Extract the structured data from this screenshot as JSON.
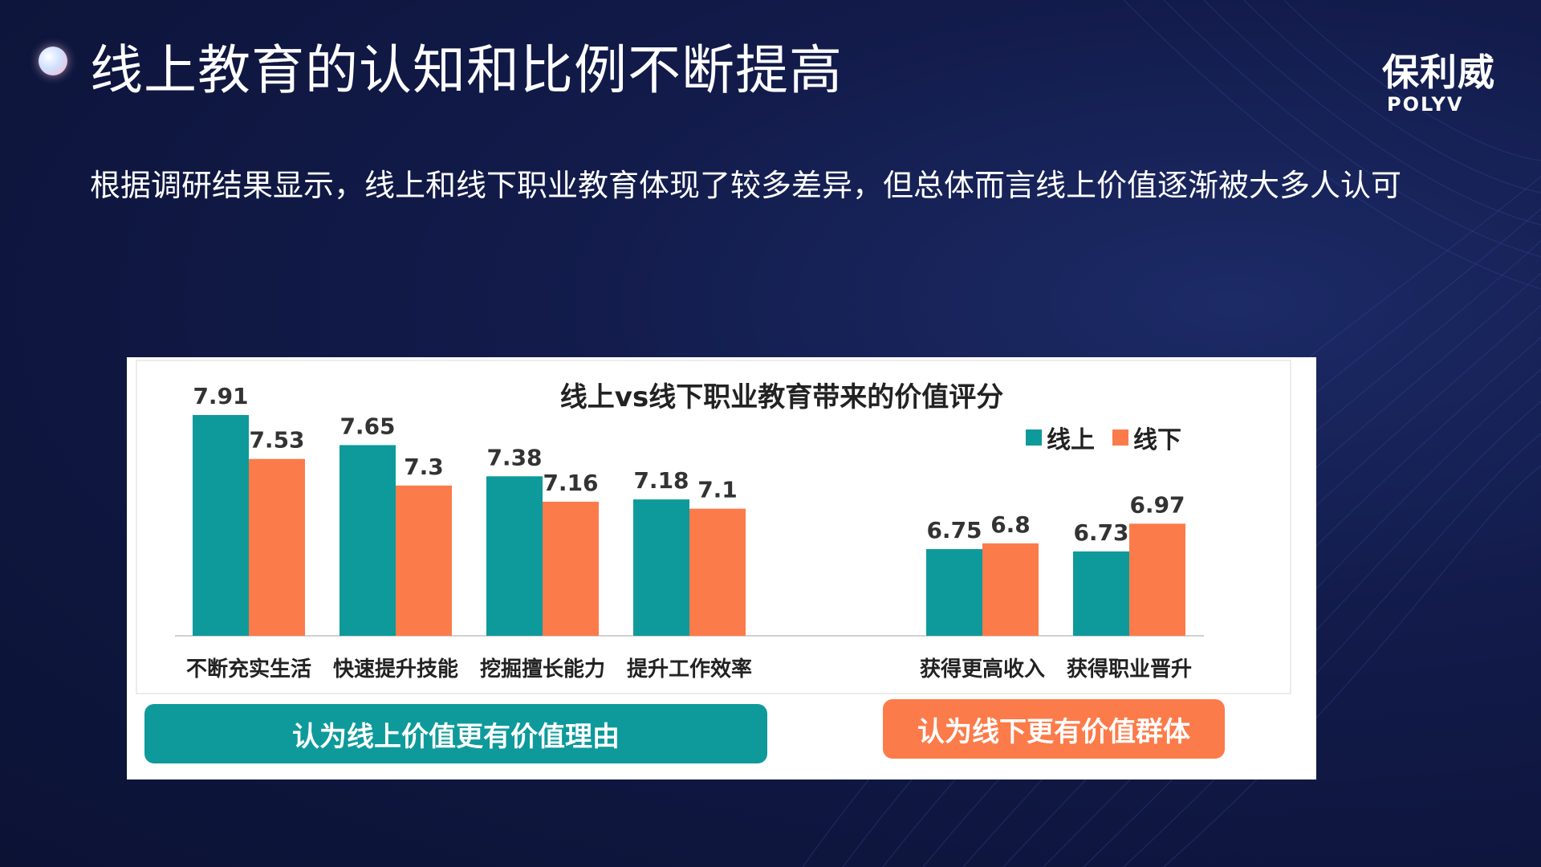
{
  "header": {
    "title": "线上教育的认知和比例不断提高",
    "subtitle": "根据调研结果显示，线上和线下职业教育体现了较多差异，但总体而言线上价值逐渐被大多人认可"
  },
  "logo": {
    "cn": "保利威",
    "en": "POLYV"
  },
  "colors": {
    "online": "#0e9a9b",
    "offline": "#fc7b4a"
  },
  "chart_data": {
    "type": "bar",
    "title": "线上vs线下职业教育带来的价值评分",
    "categories": [
      "不断充实生活",
      "快速提升技能",
      "挖掘擅长能力",
      "提升工作效率",
      "获得更高收入",
      "获得职业晋升"
    ],
    "series": [
      {
        "name": "线上",
        "values": [
          7.91,
          7.65,
          7.38,
          7.18,
          6.75,
          6.73
        ]
      },
      {
        "name": "线下",
        "values": [
          7.53,
          7.3,
          7.16,
          7.1,
          6.8,
          6.97
        ]
      }
    ],
    "ylim": [
      6.0,
      7.91
    ],
    "grid": false,
    "legend_position": "top-right"
  },
  "buttons": {
    "online_reason": "认为线上价值更有价值理由",
    "offline_group": "认为线下更有价值群体"
  }
}
